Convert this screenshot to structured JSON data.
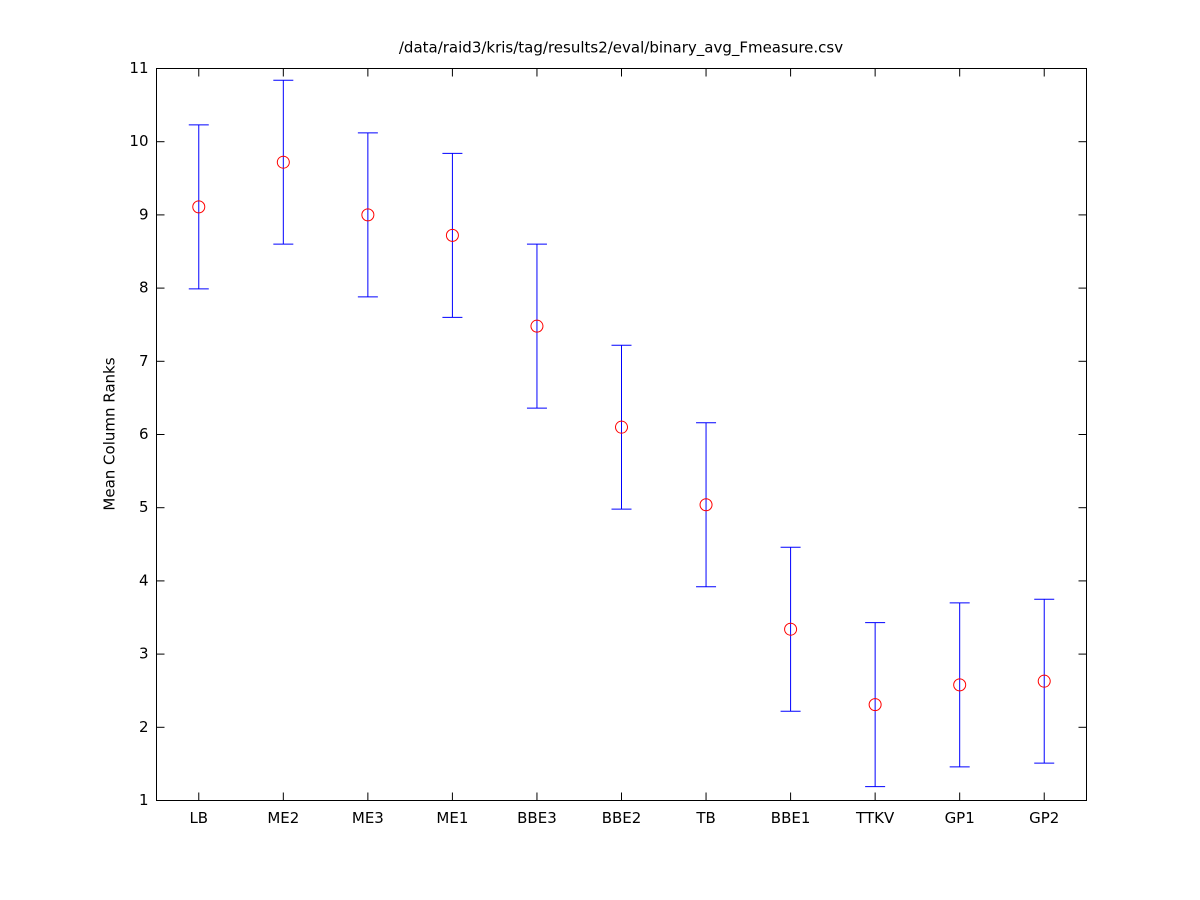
{
  "chart_data": {
    "type": "errorbar",
    "title": "/data/raid3/kris/tag/results2/eval/binary_avg_Fmeasure.csv",
    "ylabel": "Mean Column Ranks",
    "categories": [
      "LB",
      "ME2",
      "ME3",
      "ME1",
      "BBE3",
      "BBE2",
      "TB",
      "BBE1",
      "TTKV",
      "GP1",
      "GP2"
    ],
    "values": [
      9.11,
      9.72,
      9.0,
      8.72,
      7.48,
      6.1,
      5.04,
      3.34,
      2.31,
      2.58,
      2.63
    ],
    "errors": [
      1.12,
      1.12,
      1.12,
      1.12,
      1.12,
      1.12,
      1.12,
      1.12,
      1.12,
      1.12,
      1.12
    ],
    "color": "#0000ff",
    "marker_color": "#ff0000",
    "ylim": [
      1,
      11
    ],
    "yticks": [
      1,
      2,
      3,
      4,
      5,
      6,
      7,
      8,
      9,
      10,
      11
    ]
  }
}
